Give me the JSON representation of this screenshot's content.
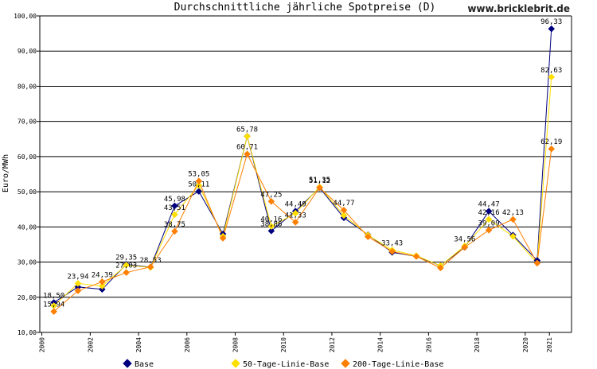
{
  "chart_data": {
    "type": "line",
    "title": "Durchschnittliche jährliche Spotpreise (D)",
    "watermark": "www.bricklebrit.de",
    "ylabel": "Euro/MWh",
    "xlabel": "",
    "ylim": [
      10,
      100
    ],
    "y_ticks": [
      "10,00",
      "20,00",
      "30,00",
      "40,00",
      "50,00",
      "60,00",
      "70,00",
      "80,00",
      "90,00",
      "100,00"
    ],
    "x_ticks": [
      "2000",
      "2002",
      "2004",
      "2006",
      "2008",
      "2010",
      "2012",
      "2014",
      "2016",
      "2018",
      "2020",
      "2021"
    ],
    "x_axis_type": "date",
    "grid": "horizontal",
    "legend_placement": "bottom",
    "x": [
      "2000-06-30",
      "2001-06-30",
      "2002-06-30",
      "2003-06-30",
      "2004-06-30",
      "2005-06-30",
      "2006-06-30",
      "2007-06-30",
      "2008-06-30",
      "2009-06-30",
      "2010-06-30",
      "2011-06-30",
      "2012-06-30",
      "2013-06-30",
      "2014-06-30",
      "2015-06-30",
      "2016-06-30",
      "2017-06-30",
      "2018-06-30",
      "2019-06-30",
      "2020-06-30",
      "2021-01-31"
    ],
    "series": [
      {
        "name": "Base",
        "color": "#00007f",
        "marker": "diamond",
        "values": [
          18.5,
          22.93,
          22.25,
          29.35,
          28.53,
          45.98,
          50.11,
          38.0,
          65.78,
          38.86,
          44.49,
          51.12,
          42.6,
          37.78,
          32.76,
          31.63,
          28.98,
          34.19,
          44.47,
          37.67,
          30.47,
          96.33
        ],
        "labels": [
          "18,50",
          "",
          "",
          "29,35",
          "28,53",
          "45,98",
          "50,11",
          "",
          "",
          "38,86",
          "44,49",
          "51,12",
          "",
          "",
          "",
          "",
          "",
          "",
          "44,47",
          "",
          "",
          "96,33"
        ]
      },
      {
        "name": "50-Tage-Linie-Base",
        "color": "#ffdf00",
        "marker": "diamond",
        "values": [
          17.6,
          23.94,
          23.19,
          29.14,
          28.47,
          43.51,
          51.83,
          37.33,
          65.78,
          40.16,
          43.9,
          51.35,
          43.26,
          37.69,
          33.43,
          31.82,
          28.98,
          34.56,
          42.16,
          37.32,
          29.7,
          82.63
        ],
        "labels": [
          "",
          "23,94",
          "",
          "",
          "",
          "43,51",
          "",
          "",
          "65,78",
          "40,16",
          "",
          "51,35",
          "",
          "",
          "33,43",
          "",
          "",
          "34,56",
          "42,16",
          "",
          "",
          "82,63"
        ]
      },
      {
        "name": "200-Tage-Linie-Base",
        "color": "#ff7f00",
        "marker": "diamond",
        "values": [
          15.94,
          21.84,
          24.39,
          27.03,
          28.63,
          38.75,
          53.05,
          36.8,
          60.71,
          47.25,
          41.33,
          51.15,
          44.77,
          37.2,
          33.02,
          31.6,
          28.35,
          34.2,
          39.09,
          42.13,
          29.7,
          62.19
        ],
        "labels": [
          "15,94",
          "",
          "24,39",
          "27,03",
          "",
          "38,75",
          "53,05",
          "",
          "60,71",
          "47,25",
          "41,33",
          "",
          "44,77",
          "",
          "",
          "",
          "",
          "",
          "39,09",
          "42,13",
          "",
          "62,19"
        ]
      }
    ]
  }
}
